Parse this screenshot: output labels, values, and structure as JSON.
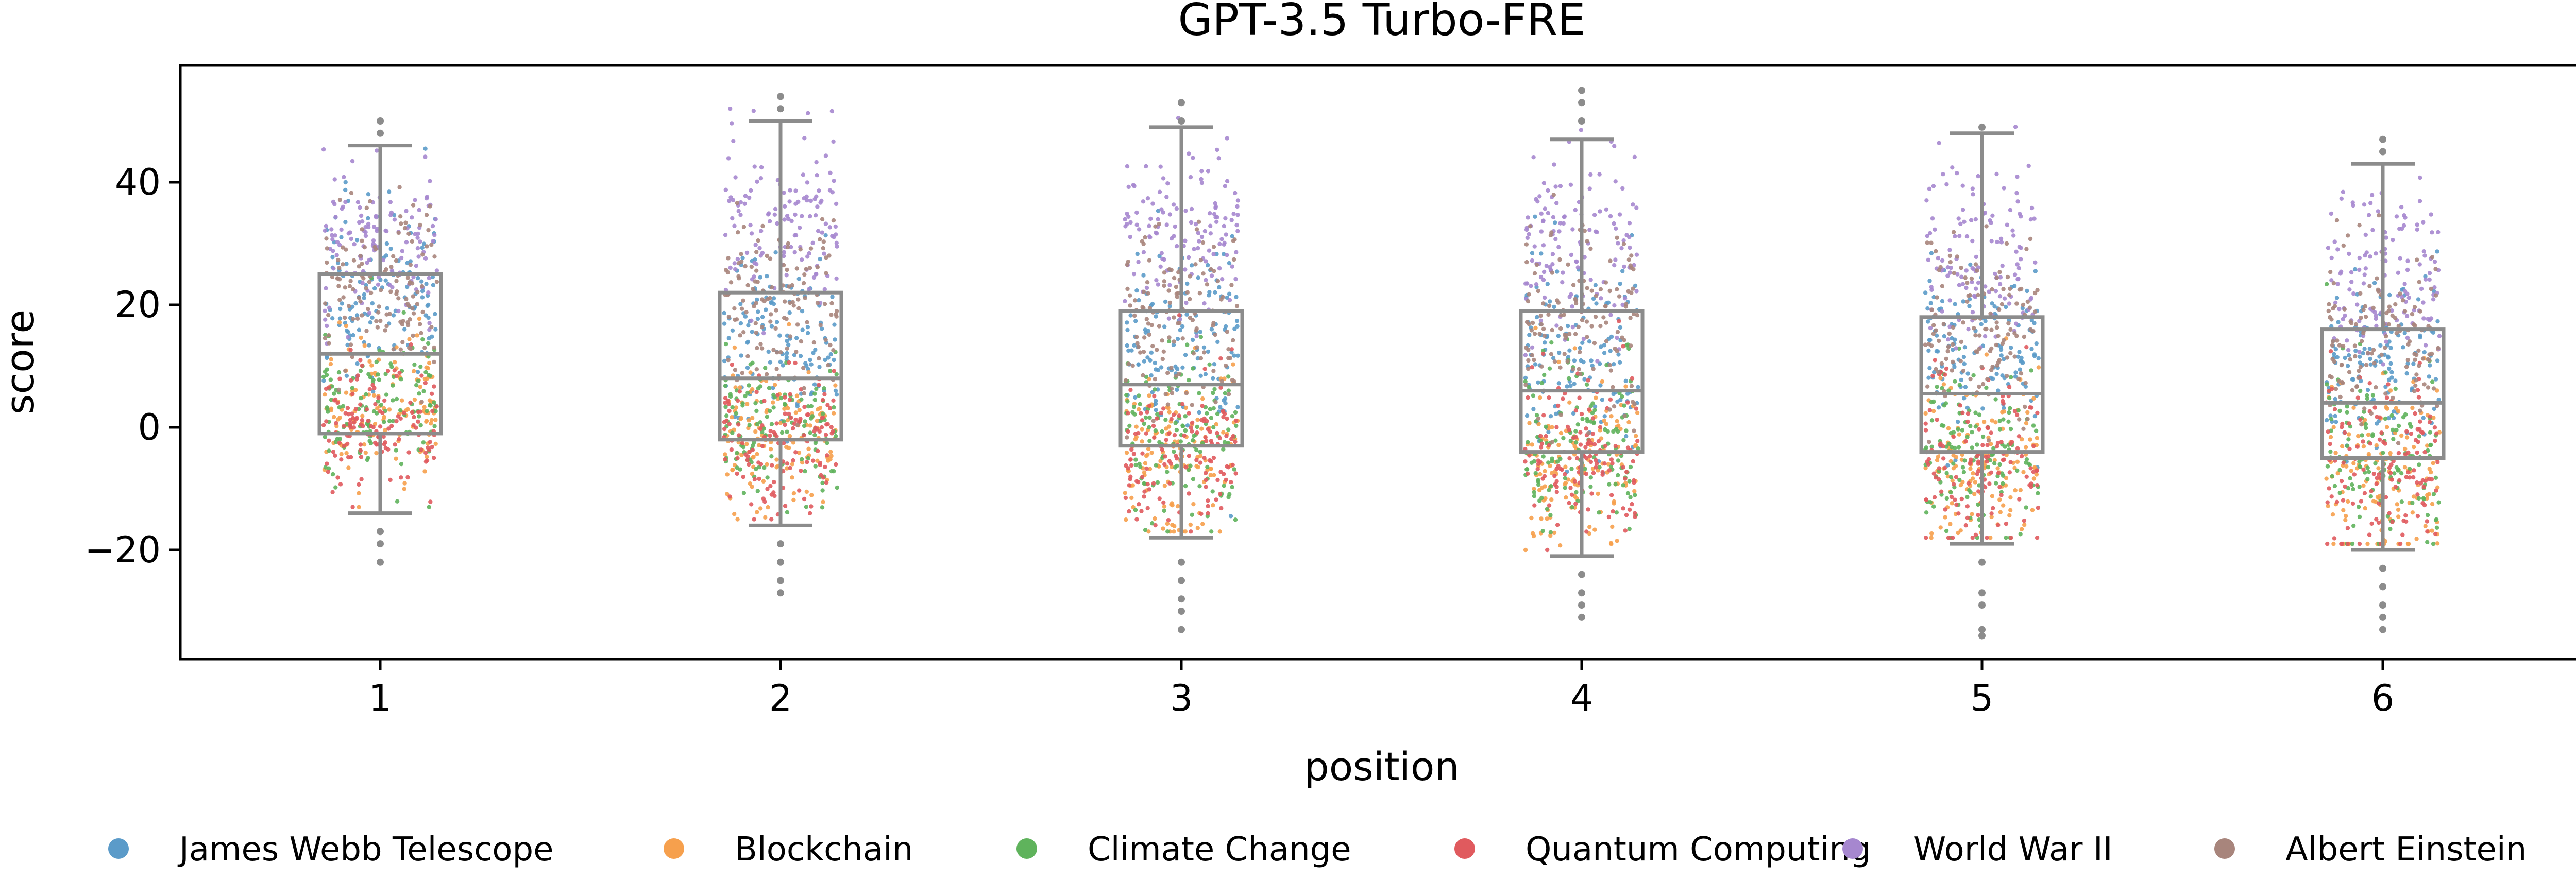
{
  "chart_data": {
    "type": "scatter",
    "subtype": "strip-box",
    "title": "GPT-3.5 Turbo-FRE",
    "xlabel": "position",
    "ylabel": "score",
    "categories": [
      "1",
      "2",
      "3",
      "4",
      "5",
      "6"
    ],
    "y_ticks": [
      "40",
      "20",
      "0",
      "−20"
    ],
    "y_tick_values": [
      40,
      20,
      0,
      -20
    ],
    "ylim": [
      -38,
      59
    ],
    "grid": false,
    "legend_position": "bottom",
    "series": [
      {
        "name": "James Webb Telescope",
        "color": "#5b9bc9",
        "center": [
          22,
          15,
          13,
          12,
          12,
          10
        ],
        "spread": [
          10,
          9,
          10,
          11,
          10,
          10
        ]
      },
      {
        "name": "Blockchain",
        "color": "#f6a04d",
        "center": [
          2,
          -2,
          -4,
          -5,
          -6,
          -7
        ],
        "spread": [
          8,
          8,
          9,
          10,
          10,
          10
        ]
      },
      {
        "name": "Climate Change",
        "color": "#5fb35c",
        "center": [
          3,
          0,
          -2,
          -3,
          -4,
          -5
        ],
        "spread": [
          8,
          8,
          9,
          10,
          10,
          10
        ]
      },
      {
        "name": "Quantum Computing",
        "color": "#e05a5e",
        "center": [
          0,
          -2,
          -4,
          -5,
          -6,
          -7
        ],
        "spread": [
          7,
          8,
          9,
          10,
          10,
          10
        ]
      },
      {
        "name": "World War II",
        "color": "#a687cf",
        "center": [
          30,
          34,
          32,
          30,
          28,
          24
        ],
        "spread": [
          8,
          9,
          9,
          10,
          10,
          10
        ]
      },
      {
        "name": "Albert Einstein",
        "color": "#a8857c",
        "center": [
          24,
          20,
          17,
          17,
          16,
          15
        ],
        "spread": [
          9,
          9,
          10,
          10,
          10,
          10
        ]
      }
    ],
    "boxes": [
      {
        "position": "1",
        "q1": -1,
        "median": 12,
        "q3": 25,
        "whisker_low": -14,
        "whisker_high": 46,
        "outliers": [
          -17,
          -19,
          -22,
          48,
          50
        ]
      },
      {
        "position": "2",
        "q1": -2,
        "median": 8,
        "q3": 22,
        "whisker_low": -16,
        "whisker_high": 50,
        "outliers": [
          -19,
          -22,
          -25,
          -27,
          52,
          54
        ]
      },
      {
        "position": "3",
        "q1": -3,
        "median": 7,
        "q3": 19,
        "whisker_low": -18,
        "whisker_high": 49,
        "outliers": [
          -22,
          -25,
          -28,
          -30,
          -33,
          50,
          53
        ]
      },
      {
        "position": "4",
        "q1": -4,
        "median": 6,
        "q3": 19,
        "whisker_low": -21,
        "whisker_high": 47,
        "outliers": [
          -24,
          -27,
          -29,
          -31,
          50,
          53,
          55
        ]
      },
      {
        "position": "5",
        "q1": -4,
        "median": 5.5,
        "q3": 18,
        "whisker_low": -19,
        "whisker_high": 48,
        "outliers": [
          -22,
          -27,
          -29,
          -33,
          -34,
          49
        ]
      },
      {
        "position": "6",
        "q1": -5,
        "median": 4,
        "q3": 16,
        "whisker_low": -20,
        "whisker_high": 43,
        "outliers": [
          -23,
          -26,
          -29,
          -31,
          -33,
          45,
          47
        ]
      }
    ]
  }
}
